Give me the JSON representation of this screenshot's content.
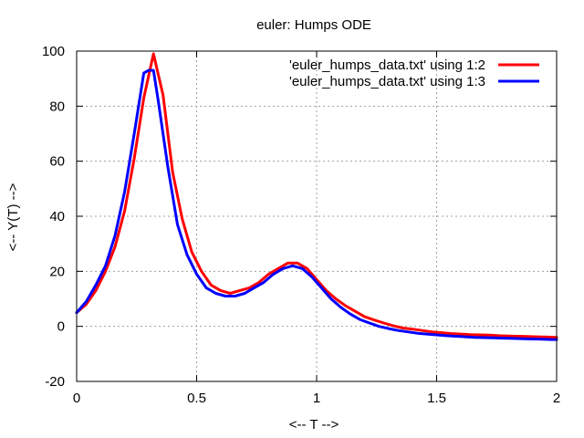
{
  "chart_data": {
    "type": "line",
    "title": "euler: Humps ODE",
    "xlabel": "<-- T -->",
    "ylabel": "<-- Y(T) -->",
    "xlim": [
      0,
      2
    ],
    "ylim": [
      -20,
      100
    ],
    "xticks": [
      0,
      0.5,
      1,
      1.5,
      2
    ],
    "xtick_labels": [
      "0",
      "0.5",
      "1",
      "1.5",
      "2"
    ],
    "yticks": [
      -20,
      0,
      20,
      40,
      60,
      80,
      100
    ],
    "ytick_labels": [
      "-20",
      "0",
      "20",
      "40",
      "60",
      "80",
      "100"
    ],
    "grid": true,
    "legend_position": "top-right",
    "series": [
      {
        "name": "'euler_humps_data.txt' using 1:2",
        "color": "#ff0000",
        "x": [
          0,
          0.04,
          0.08,
          0.12,
          0.16,
          0.2,
          0.24,
          0.28,
          0.32,
          0.36,
          0.4,
          0.44,
          0.48,
          0.52,
          0.56,
          0.6,
          0.64,
          0.68,
          0.72,
          0.76,
          0.8,
          0.84,
          0.88,
          0.92,
          0.96,
          1.0,
          1.04,
          1.08,
          1.12,
          1.16,
          1.2,
          1.24,
          1.28,
          1.32,
          1.36,
          1.4,
          1.44,
          1.48,
          1.52,
          1.56,
          1.6,
          1.64,
          1.68,
          1.72,
          1.76,
          1.8,
          1.84,
          1.88,
          1.92,
          1.96,
          2.0
        ],
        "y": [
          5,
          8,
          13,
          20,
          29,
          42,
          61,
          83,
          99,
          84,
          56,
          39,
          27,
          20,
          15,
          13,
          12,
          13,
          14,
          16,
          19,
          21,
          23,
          23,
          21,
          17,
          13,
          10,
          7.5,
          5.5,
          3.5,
          2.3,
          1.2,
          0.2,
          -0.6,
          -1,
          -1.5,
          -2,
          -2.3,
          -2.6,
          -2.8,
          -3,
          -3.1,
          -3.2,
          -3.4,
          -3.5,
          -3.6,
          -3.7,
          -3.8,
          -3.9,
          -4
        ]
      },
      {
        "name": "'euler_humps_data.txt' using 1:3",
        "color": "#0000ff",
        "x": [
          0,
          0.04,
          0.08,
          0.12,
          0.16,
          0.2,
          0.24,
          0.28,
          0.3,
          0.32,
          0.34,
          0.38,
          0.42,
          0.46,
          0.5,
          0.54,
          0.58,
          0.62,
          0.66,
          0.7,
          0.74,
          0.78,
          0.82,
          0.86,
          0.9,
          0.94,
          0.98,
          1.02,
          1.06,
          1.1,
          1.14,
          1.18,
          1.22,
          1.26,
          1.3,
          1.34,
          1.38,
          1.42,
          1.46,
          1.5,
          1.54,
          1.58,
          1.62,
          1.66,
          1.7,
          1.74,
          1.78,
          1.82,
          1.86,
          1.9,
          1.94,
          1.98,
          2.0
        ],
        "y": [
          5,
          9,
          15,
          22,
          33,
          49,
          70,
          92,
          93,
          93,
          82,
          58,
          37,
          26,
          19,
          14,
          12,
          11,
          11,
          12,
          14,
          16,
          19,
          21,
          22,
          21,
          18,
          14,
          10,
          7,
          4.5,
          2.5,
          1.2,
          0,
          -0.8,
          -1.5,
          -2,
          -2.5,
          -2.8,
          -3.1,
          -3.4,
          -3.6,
          -3.8,
          -4,
          -4.1,
          -4.2,
          -4.3,
          -4.4,
          -4.5,
          -4.6,
          -4.7,
          -4.8,
          -4.8
        ]
      }
    ]
  }
}
